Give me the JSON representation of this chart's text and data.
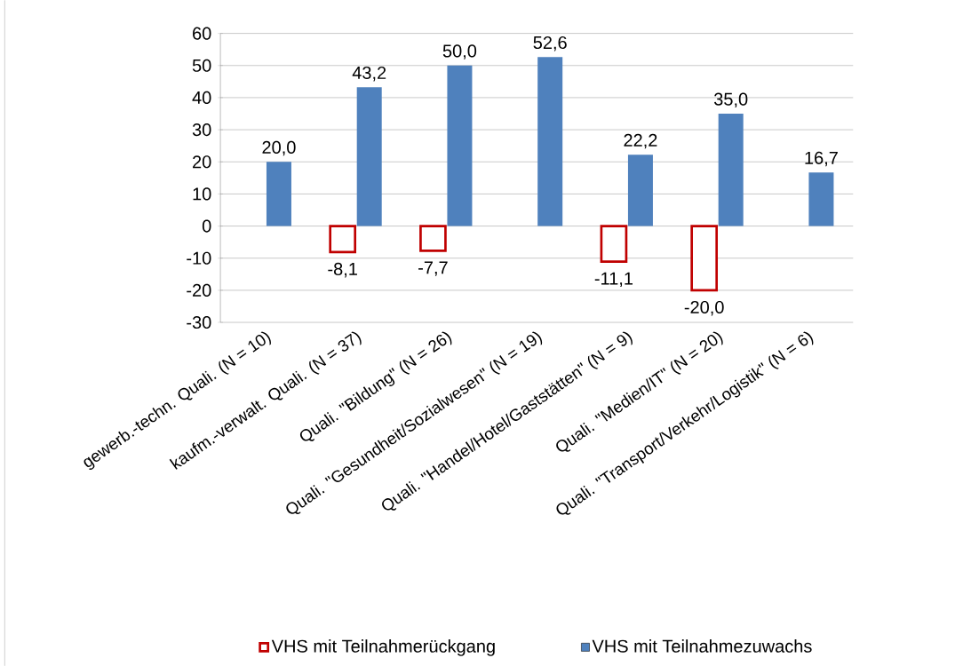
{
  "chart_data": {
    "type": "bar",
    "categories": [
      "gewerb.-techn. Quali. (N = 10)",
      "kaufm.-verwalt. Quali. (N = 37)",
      "Quali. \"Bildung\" (N = 26)",
      "Quali.  \"Gesundheit/Sozialwesen\" (N = 19)",
      "Quali.  \"Handel/Hotel/Gaststätten\" (N = 9)",
      "Quali.  \"Medien/IT\" (N = 20)",
      "Quali.  \"Transport/Verkehr/Logistik\" (N = 6)"
    ],
    "series": [
      {
        "name": "VHS mit Teilnahmerückgang",
        "color": "#c00000",
        "values": [
          null,
          -8.1,
          -7.7,
          null,
          -11.1,
          -20.0,
          null
        ],
        "value_labels": [
          null,
          "-8,1",
          "-7,7",
          null,
          "-11,1",
          "-20,0",
          null
        ]
      },
      {
        "name": "VHS mit Teilnahmezuwachs",
        "color": "#4f81bd",
        "values": [
          20.0,
          43.2,
          50.0,
          52.6,
          22.2,
          35.0,
          16.7
        ],
        "value_labels": [
          "20,0",
          "43,2",
          "50,0",
          "52,6",
          "22,2",
          "35,0",
          "16,7"
        ]
      }
    ],
    "ylim": [
      -30,
      60
    ],
    "yticks": [
      -30,
      -20,
      -10,
      0,
      10,
      20,
      30,
      40,
      50,
      60
    ],
    "grid": "y",
    "legend": "bottom"
  }
}
